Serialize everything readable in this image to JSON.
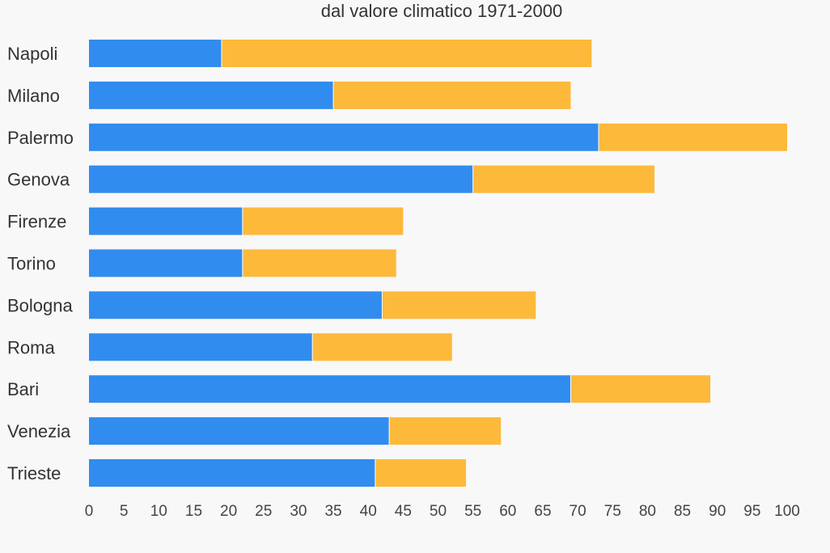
{
  "chart_data": {
    "type": "bar",
    "orientation": "horizontal",
    "stacked": true,
    "title": "dal valore climatico 1971-2000",
    "xlabel": "",
    "ylabel": "",
    "xlim": [
      0,
      100
    ],
    "x_ticks": [
      "0",
      "5",
      "10",
      "15",
      "20",
      "25",
      "30",
      "35",
      "40",
      "45",
      "50",
      "55",
      "60",
      "65",
      "70",
      "75",
      "80",
      "85",
      "90",
      "95",
      "100"
    ],
    "grid": false,
    "categories": [
      "Napoli",
      "Milano",
      "Palermo",
      "Genova",
      "Firenze",
      "Torino",
      "Bologna",
      "Roma",
      "Bari",
      "Venezia",
      "Trieste"
    ],
    "series": [
      {
        "color": "#318cef",
        "values": [
          19,
          35,
          73,
          55,
          22,
          22,
          42,
          32,
          69,
          43,
          41
        ]
      },
      {
        "color": "#fdb93a",
        "values": [
          53,
          34,
          27,
          26,
          23,
          22,
          22,
          20,
          20,
          16,
          13
        ]
      }
    ]
  }
}
